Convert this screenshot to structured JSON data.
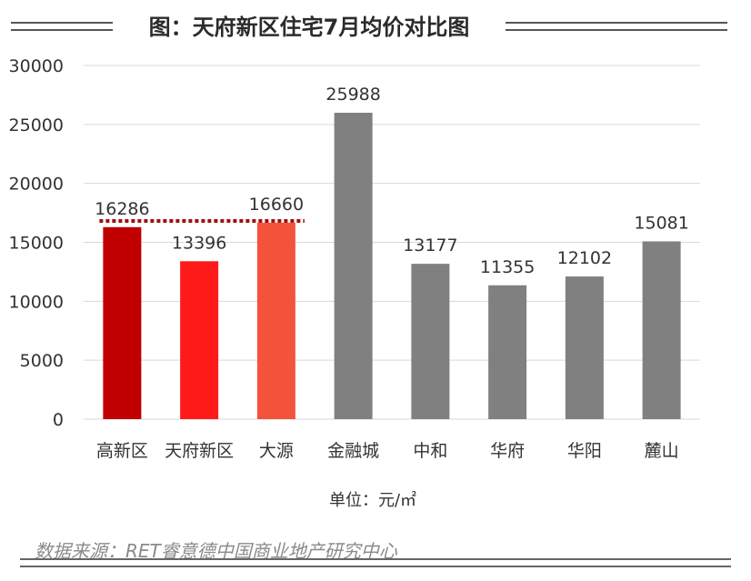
{
  "header": {
    "title": "图：天府新区住宅7月均价对比图"
  },
  "chart_data": {
    "type": "bar",
    "title": "图：天府新区住宅7月均价对比图",
    "categories": [
      "高新区",
      "天府新区",
      "大源",
      "金融城",
      "中和",
      "华府",
      "华阳",
      "麓山"
    ],
    "values": [
      16286,
      13396,
      16660,
      25988,
      13177,
      11355,
      12102,
      15081
    ],
    "data_labels": [
      "16286",
      "13396",
      "16660",
      "25988",
      "13177",
      "11355",
      "12102",
      "15081"
    ],
    "bar_colors": [
      "#c00000",
      "#ff1a1a",
      "#f4533b",
      "#808080",
      "#808080",
      "#808080",
      "#808080",
      "#808080"
    ],
    "yticks": [
      "30000",
      "25000",
      "20000",
      "15000",
      "10000",
      "5000",
      "0"
    ],
    "ylim": [
      0,
      30000
    ],
    "xlabel": "单位：元/㎡",
    "ylabel": "",
    "grid": true,
    "reference_line": {
      "value": 16660,
      "color": "#a01010",
      "style": "dotted"
    }
  },
  "footer": {
    "source": "数据来源：RET睿意德中国商业地产研究中心"
  },
  "colors": {
    "grid": "#d9d9d9",
    "text": "#333333"
  }
}
